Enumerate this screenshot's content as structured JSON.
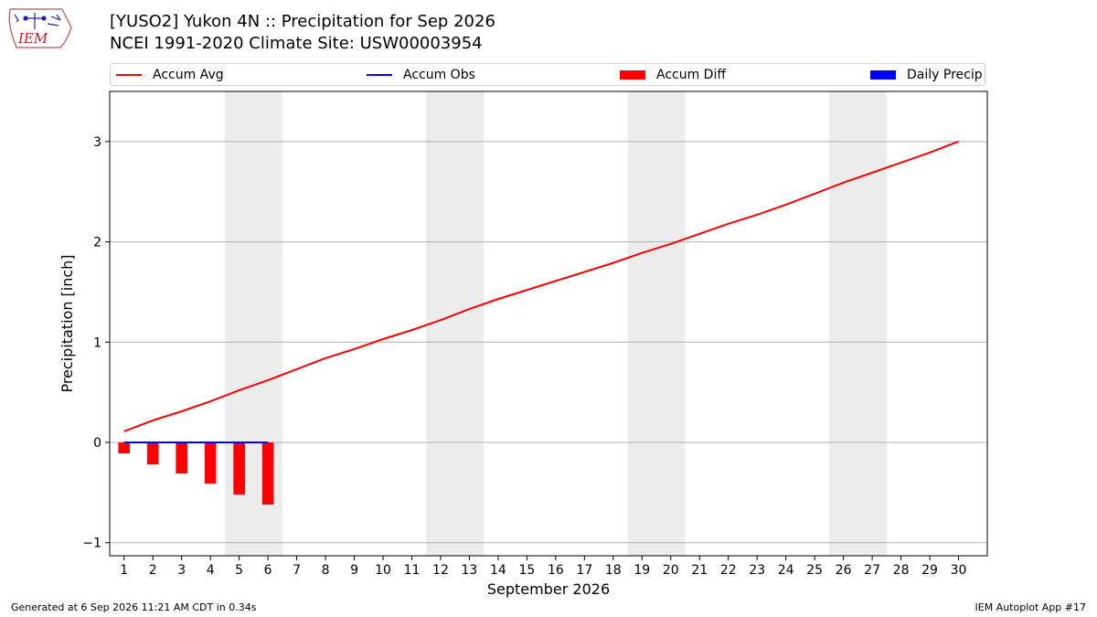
{
  "header": {
    "logo_text": "IEM",
    "title_line1": "[YUSO2] Yukon 4N :: Precipitation for Sep 2026",
    "title_line2": "NCEI 1991-2020 Climate Site: USW00003954"
  },
  "legend": {
    "items": [
      {
        "label": "Accum Avg",
        "kind": "line",
        "color": "#ff0000"
      },
      {
        "label": "Accum Obs",
        "kind": "line",
        "color": "#0000ff"
      },
      {
        "label": "Accum Diff",
        "kind": "patch",
        "color": "#ff0000"
      },
      {
        "label": "Daily Precip",
        "kind": "patch",
        "color": "#0000ff"
      }
    ]
  },
  "footer": {
    "generated": "Generated at 6 Sep 2026 11:21 AM CDT in 0.34s",
    "app": "IEM Autoplot App #17"
  },
  "colors": {
    "accum_avg": "#ff0000",
    "accum_obs": "#0000ff",
    "accum_diff": "#ff0000",
    "weekend_shade": "#ececec",
    "grid": "#b0b0b0"
  },
  "chart_data": {
    "type": "bar+line",
    "xlabel": "September 2026",
    "ylabel": "Precipitation [inch]",
    "xlim": [
      0.5,
      31
    ],
    "ylim": [
      -1.13,
      3.5
    ],
    "yticks": [
      -1,
      0,
      1,
      2,
      3
    ],
    "ytick_labels": [
      "−1",
      "0",
      "1",
      "2",
      "3"
    ],
    "xticks": [
      1,
      2,
      3,
      4,
      5,
      6,
      7,
      8,
      9,
      10,
      11,
      12,
      13,
      14,
      15,
      16,
      17,
      18,
      19,
      20,
      21,
      22,
      23,
      24,
      25,
      26,
      27,
      28,
      29,
      30
    ],
    "grid": "horizontal",
    "shaded_weekends": [
      [
        4.5,
        6.5
      ],
      [
        11.5,
        13.5
      ],
      [
        18.5,
        20.5
      ],
      [
        25.5,
        27.5
      ]
    ],
    "series": [
      {
        "name": "Accum Avg",
        "kind": "line",
        "color": "#ff0000",
        "x": [
          1,
          2,
          3,
          4,
          5,
          6,
          7,
          8,
          9,
          10,
          11,
          12,
          13,
          14,
          15,
          16,
          17,
          18,
          19,
          20,
          21,
          22,
          23,
          24,
          25,
          26,
          27,
          28,
          29,
          30
        ],
        "values": [
          0.11,
          0.22,
          0.31,
          0.41,
          0.52,
          0.62,
          0.73,
          0.84,
          0.93,
          1.03,
          1.12,
          1.22,
          1.33,
          1.43,
          1.52,
          1.61,
          1.7,
          1.79,
          1.89,
          1.98,
          2.08,
          2.18,
          2.27,
          2.37,
          2.48,
          2.59,
          2.69,
          2.79,
          2.89,
          3.0
        ]
      },
      {
        "name": "Accum Obs",
        "kind": "line",
        "color": "#0000ff",
        "x": [
          1,
          2,
          3,
          4,
          5,
          6
        ],
        "values": [
          0,
          0,
          0,
          0,
          0,
          0
        ]
      },
      {
        "name": "Accum Diff",
        "kind": "bar",
        "color": "#ff0000",
        "x": [
          1,
          2,
          3,
          4,
          5,
          6
        ],
        "values": [
          -0.11,
          -0.22,
          -0.31,
          -0.41,
          -0.52,
          -0.62
        ]
      },
      {
        "name": "Daily Precip",
        "kind": "bar",
        "color": "#0000ff",
        "x": [
          1,
          2,
          3,
          4,
          5,
          6
        ],
        "values": [
          0,
          0,
          0,
          0,
          0,
          0
        ]
      }
    ]
  }
}
